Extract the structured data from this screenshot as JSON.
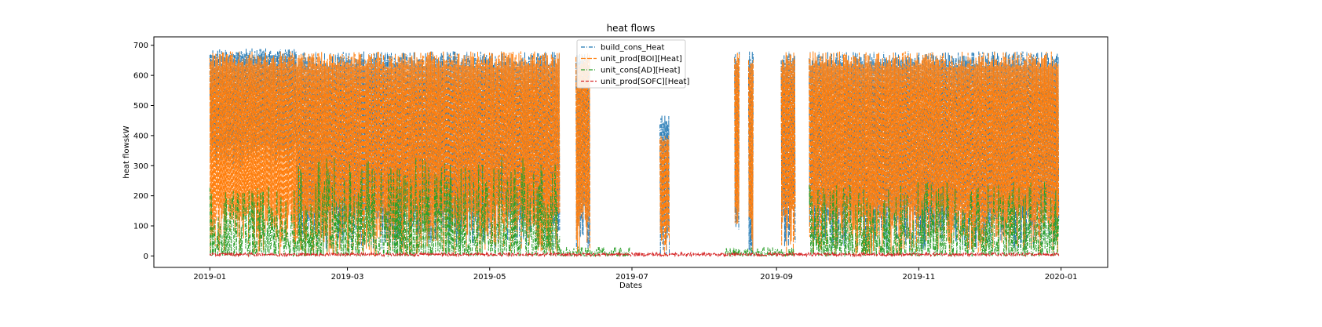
{
  "chart_data": {
    "type": "line",
    "title": "heat flows",
    "xlabel": "Dates",
    "ylabel": "heat flowskW",
    "xlim": [
      "2018-12-08",
      "2020-01-21"
    ],
    "ylim": [
      -38,
      728
    ],
    "x_ticks": [
      "2019-01",
      "2019-03",
      "2019-05",
      "2019-07",
      "2019-09",
      "2019-11",
      "2020-01"
    ],
    "y_ticks": [
      0,
      100,
      200,
      300,
      400,
      500,
      600,
      700
    ],
    "grid": false,
    "legend_position": "top-center",
    "series": [
      {
        "name": "build_cons_Heat",
        "color": "#1f77b4",
        "style": "dashdot",
        "segments": [
          {
            "start": "2019-01-01",
            "end": "2019-02-07",
            "low": 280,
            "high": 690
          },
          {
            "start": "2019-02-07",
            "end": "2019-05-31",
            "low": 20,
            "high": 680
          },
          {
            "start": "2019-06-07",
            "end": "2019-06-13",
            "low": 20,
            "high": 680
          },
          {
            "start": "2019-07-13",
            "end": "2019-07-17",
            "low": 0,
            "high": 470
          },
          {
            "start": "2019-08-14",
            "end": "2019-08-16",
            "low": 0,
            "high": 680
          },
          {
            "start": "2019-08-20",
            "end": "2019-08-22",
            "low": 0,
            "high": 680
          },
          {
            "start": "2019-09-03",
            "end": "2019-09-09",
            "low": 20,
            "high": 680
          },
          {
            "start": "2019-09-15",
            "end": "2019-12-31",
            "low": 20,
            "high": 680
          }
        ]
      },
      {
        "name": "unit_prod[BOI][Heat]",
        "color": "#ff7f0e",
        "style": "dashed-long",
        "segments": [
          {
            "start": "2019-01-01",
            "end": "2019-02-07",
            "low": 0,
            "high": 680
          },
          {
            "start": "2019-02-07",
            "end": "2019-05-31",
            "low": 0,
            "high": 680
          },
          {
            "start": "2019-06-07",
            "end": "2019-06-13",
            "low": 0,
            "high": 680
          },
          {
            "start": "2019-07-13",
            "end": "2019-07-17",
            "low": 0,
            "high": 400
          },
          {
            "start": "2019-08-14",
            "end": "2019-08-16",
            "low": 0,
            "high": 680
          },
          {
            "start": "2019-08-20",
            "end": "2019-08-22",
            "low": 0,
            "high": 680
          },
          {
            "start": "2019-09-03",
            "end": "2019-09-09",
            "low": 0,
            "high": 680
          },
          {
            "start": "2019-09-15",
            "end": "2019-12-31",
            "low": 0,
            "high": 680
          }
        ]
      },
      {
        "name": "unit_cons[AD][Heat]",
        "color": "#2ca02c",
        "style": "dashdot",
        "segments": [
          {
            "start": "2019-01-01",
            "end": "2019-02-07",
            "low": 0,
            "high": 230
          },
          {
            "start": "2019-02-07",
            "end": "2019-05-31",
            "low": 0,
            "high": 330
          },
          {
            "start": "2019-05-31",
            "end": "2019-06-30",
            "low": 0,
            "high": 30
          },
          {
            "start": "2019-08-10",
            "end": "2019-09-09",
            "low": 0,
            "high": 30
          },
          {
            "start": "2019-09-15",
            "end": "2019-12-31",
            "low": 0,
            "high": 250
          }
        ]
      },
      {
        "name": "unit_prod[SOFC][Heat]",
        "color": "#d62728",
        "style": "dashed",
        "segments": [
          {
            "start": "2019-01-01",
            "end": "2019-12-31",
            "low": 0,
            "high": 10
          }
        ]
      }
    ]
  }
}
